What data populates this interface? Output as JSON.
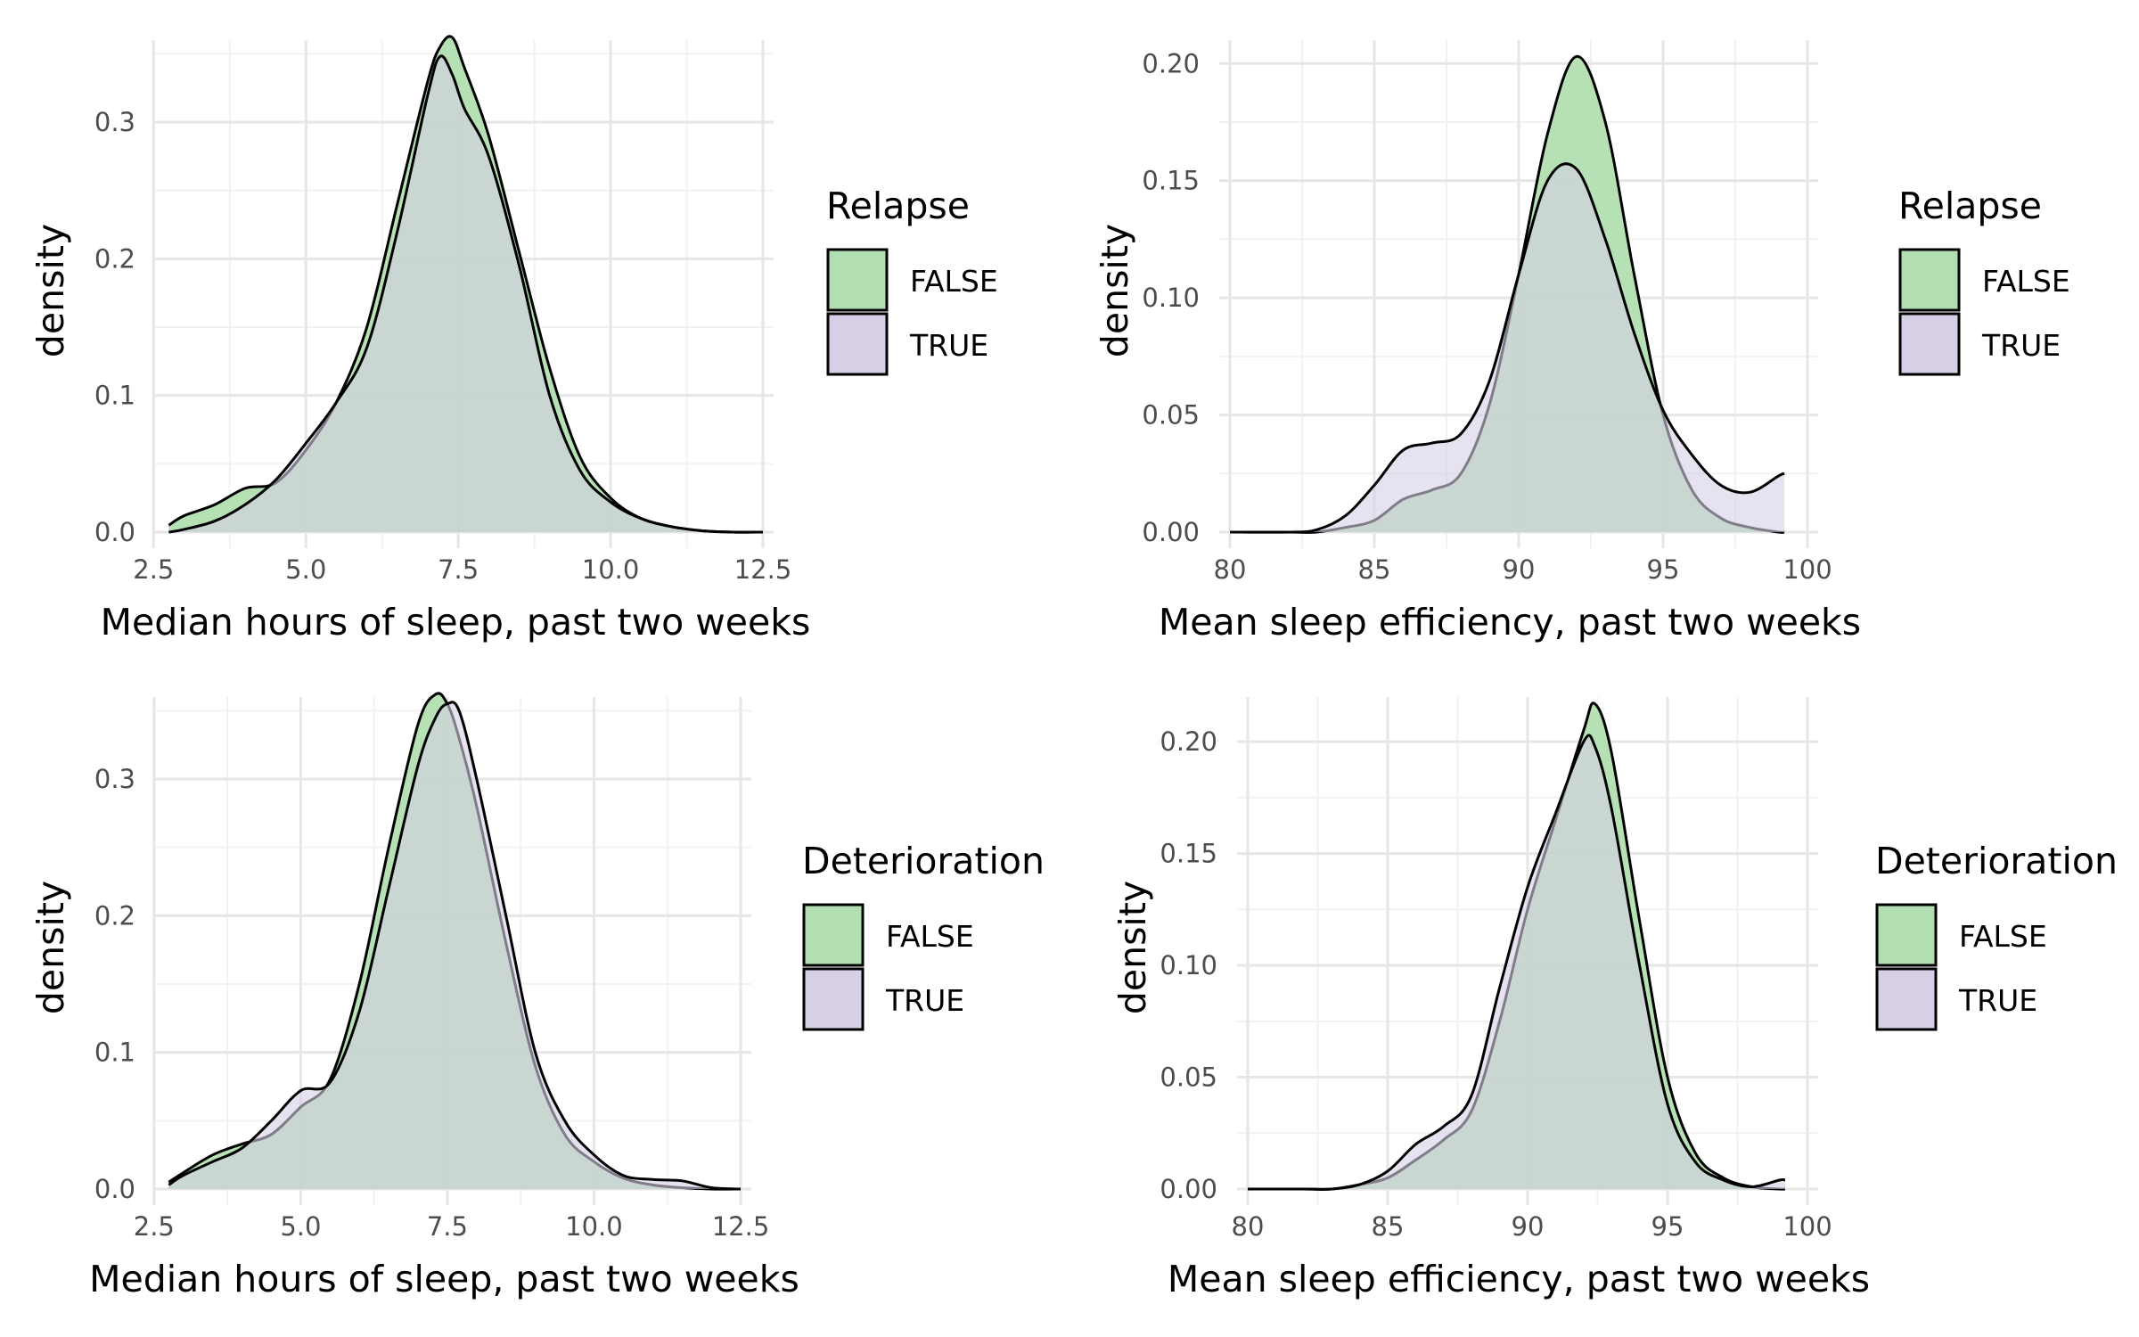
{
  "colors": {
    "FALSE": "#b2dfb1",
    "TRUE": "#d6cfe5",
    "outline": "#000000",
    "grid_major": "#e6e6e6",
    "grid_minor": "#f2f2f2"
  },
  "chart_data": [
    {
      "type": "area",
      "xlabel": "Median hours of sleep, past two weeks",
      "ylabel": "density",
      "legend_title": "Relapse",
      "xlim": [
        2.7,
        12.5
      ],
      "ylim": [
        0,
        0.36
      ],
      "x_ticks": [
        2.5,
        5.0,
        7.5,
        10.0,
        12.5
      ],
      "x_tick_labels": [
        "2.5",
        "5.0",
        "7.5",
        "10.0",
        "12.5"
      ],
      "y_ticks": [
        0.0,
        0.1,
        0.2,
        0.3
      ],
      "y_tick_labels": [
        "0.0",
        "0.1",
        "0.2",
        "0.3"
      ],
      "series": [
        {
          "name": "FALSE",
          "x": [
            2.75,
            3.0,
            3.5,
            4.0,
            4.5,
            5.0,
            5.5,
            6.0,
            6.5,
            7.0,
            7.2,
            7.4,
            7.6,
            8.0,
            8.5,
            9.0,
            9.5,
            10.0,
            10.5,
            11.0,
            11.5,
            12.0,
            12.5
          ],
          "y": [
            0.005,
            0.012,
            0.02,
            0.032,
            0.036,
            0.06,
            0.095,
            0.15,
            0.24,
            0.33,
            0.355,
            0.362,
            0.34,
            0.29,
            0.205,
            0.12,
            0.055,
            0.025,
            0.01,
            0.004,
            0.001,
            0.0,
            0.0
          ]
        },
        {
          "name": "TRUE",
          "x": [
            2.75,
            3.0,
            3.5,
            4.0,
            4.5,
            5.0,
            5.5,
            6.0,
            6.5,
            7.0,
            7.2,
            7.4,
            7.6,
            8.0,
            8.5,
            9.0,
            9.5,
            10.0,
            10.5,
            11.0,
            11.5,
            12.0,
            12.5
          ],
          "y": [
            0.0,
            0.002,
            0.008,
            0.02,
            0.038,
            0.065,
            0.095,
            0.135,
            0.22,
            0.32,
            0.348,
            0.335,
            0.31,
            0.275,
            0.195,
            0.1,
            0.045,
            0.022,
            0.01,
            0.004,
            0.001,
            0.0,
            0.0
          ]
        }
      ]
    },
    {
      "type": "area",
      "xlabel": "Mean sleep efficiency, past two weeks",
      "ylabel": "density",
      "legend_title": "Relapse",
      "xlim": [
        80,
        100
      ],
      "ylim": [
        0,
        0.21
      ],
      "x_ticks": [
        80,
        85,
        90,
        95,
        100
      ],
      "x_tick_labels": [
        "80",
        "85",
        "90",
        "95",
        "100"
      ],
      "y_ticks": [
        0.0,
        0.05,
        0.1,
        0.15,
        0.2
      ],
      "y_tick_labels": [
        "0.00",
        "0.05",
        "0.10",
        "0.15",
        "0.20"
      ],
      "series": [
        {
          "name": "FALSE",
          "x": [
            80,
            82,
            83,
            84,
            85,
            86,
            87,
            88,
            89,
            90,
            91,
            92,
            93,
            94,
            95,
            96,
            97,
            98,
            99,
            99.2
          ],
          "y": [
            0.0,
            0.0,
            0.0,
            0.002,
            0.005,
            0.014,
            0.018,
            0.025,
            0.055,
            0.11,
            0.17,
            0.203,
            0.175,
            0.11,
            0.05,
            0.018,
            0.006,
            0.002,
            0.0,
            0.0
          ]
        },
        {
          "name": "TRUE",
          "x": [
            80,
            82,
            83,
            84,
            85,
            86,
            87,
            88,
            89,
            90,
            91,
            92,
            93,
            94,
            95,
            96,
            97,
            98,
            99,
            99.2
          ],
          "y": [
            0.0,
            0.0,
            0.001,
            0.007,
            0.02,
            0.035,
            0.038,
            0.042,
            0.065,
            0.11,
            0.15,
            0.155,
            0.125,
            0.085,
            0.052,
            0.033,
            0.02,
            0.017,
            0.024,
            0.025
          ]
        }
      ]
    },
    {
      "type": "area",
      "xlabel": "Median hours of sleep, past two weeks",
      "ylabel": "density",
      "legend_title": "Deterioration",
      "xlim": [
        2.7,
        12.5
      ],
      "ylim": [
        0,
        0.36
      ],
      "x_ticks": [
        2.5,
        5.0,
        7.5,
        10.0,
        12.5
      ],
      "x_tick_labels": [
        "2.5",
        "5.0",
        "7.5",
        "10.0",
        "12.5"
      ],
      "y_ticks": [
        0.0,
        0.1,
        0.2,
        0.3
      ],
      "y_tick_labels": [
        "0.0",
        "0.1",
        "0.2",
        "0.3"
      ],
      "series": [
        {
          "name": "FALSE",
          "x": [
            2.75,
            3.0,
            3.5,
            4.0,
            4.5,
            5.0,
            5.5,
            6.0,
            6.5,
            7.0,
            7.3,
            7.5,
            7.7,
            8.0,
            8.5,
            9.0,
            9.5,
            10.0,
            10.5,
            11.0,
            11.5,
            12.0,
            12.5
          ],
          "y": [
            0.005,
            0.012,
            0.025,
            0.033,
            0.04,
            0.06,
            0.08,
            0.15,
            0.25,
            0.34,
            0.362,
            0.355,
            0.33,
            0.28,
            0.18,
            0.09,
            0.04,
            0.02,
            0.008,
            0.003,
            0.001,
            0.0,
            0.0
          ]
        },
        {
          "name": "TRUE",
          "x": [
            2.75,
            3.0,
            3.5,
            4.0,
            4.5,
            5.0,
            5.5,
            6.0,
            6.5,
            7.0,
            7.3,
            7.5,
            7.7,
            8.0,
            8.5,
            9.0,
            9.5,
            10.0,
            10.5,
            11.0,
            11.5,
            12.0,
            12.5
          ],
          "y": [
            0.003,
            0.01,
            0.02,
            0.03,
            0.05,
            0.072,
            0.078,
            0.13,
            0.22,
            0.31,
            0.345,
            0.355,
            0.35,
            0.3,
            0.2,
            0.1,
            0.05,
            0.025,
            0.01,
            0.007,
            0.006,
            0.001,
            0.0
          ]
        }
      ]
    },
    {
      "type": "area",
      "xlabel": "Mean sleep efficiency, past two weeks",
      "ylabel": "density",
      "legend_title": "Deterioration",
      "xlim": [
        80,
        100
      ],
      "ylim": [
        0,
        0.22
      ],
      "x_ticks": [
        80,
        85,
        90,
        95,
        100
      ],
      "x_tick_labels": [
        "80",
        "85",
        "90",
        "95",
        "100"
      ],
      "y_ticks": [
        0.0,
        0.05,
        0.1,
        0.15,
        0.2
      ],
      "y_tick_labels": [
        "0.00",
        "0.05",
        "0.10",
        "0.15",
        "0.20"
      ],
      "series": [
        {
          "name": "FALSE",
          "x": [
            80,
            82,
            83,
            84,
            85,
            86,
            87,
            88,
            89,
            90,
            91,
            92,
            92.4,
            93,
            94,
            95,
            96,
            97,
            98,
            99,
            99.2
          ],
          "y": [
            0.0,
            0.0,
            0.0,
            0.002,
            0.005,
            0.013,
            0.022,
            0.035,
            0.075,
            0.125,
            0.165,
            0.205,
            0.217,
            0.195,
            0.12,
            0.05,
            0.016,
            0.005,
            0.001,
            0.0,
            0.0
          ]
        },
        {
          "name": "TRUE",
          "x": [
            80,
            82,
            83,
            84,
            85,
            86,
            87,
            88,
            89,
            90,
            91,
            92,
            92.4,
            93,
            94,
            95,
            96,
            97,
            98,
            99,
            99.2
          ],
          "y": [
            0.0,
            0.0,
            0.0,
            0.002,
            0.008,
            0.02,
            0.028,
            0.042,
            0.09,
            0.135,
            0.168,
            0.2,
            0.198,
            0.17,
            0.1,
            0.038,
            0.012,
            0.004,
            0.001,
            0.004,
            0.004
          ]
        }
      ]
    }
  ]
}
